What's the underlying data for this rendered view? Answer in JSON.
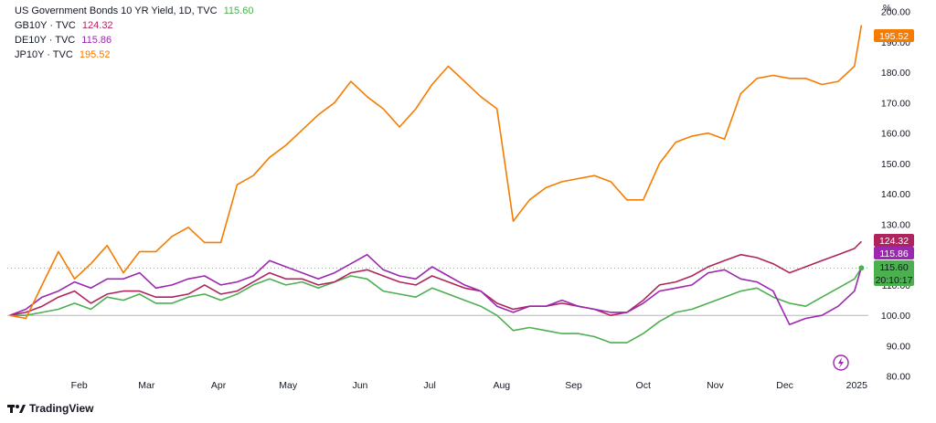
{
  "legend": {
    "main_title": "US Government Bonds 10 YR Yield, 1D, TVC",
    "main_value": "115.60",
    "main_color": "#4caf50",
    "items": [
      {
        "label": "GB10Y · TVC",
        "value": "124.32",
        "color": "#b0245e"
      },
      {
        "label": "DE10Y · TVC",
        "value": "115.86",
        "color": "#9c27b0"
      },
      {
        "label": "JP10Y · TVC",
        "value": "195.52",
        "color": "#f57c00"
      }
    ]
  },
  "axis": {
    "unit": "%",
    "countdown": "20:10:17",
    "last_badges": [
      {
        "series": "JP10Y",
        "text": "195.52",
        "color": "#f57c00"
      },
      {
        "series": "GB10Y",
        "text": "124.32",
        "color": "#b0245e"
      },
      {
        "series": "DE10Y",
        "text": "115.86",
        "color": "#9c27b0"
      },
      {
        "series": "US10Y",
        "text": "115.60",
        "color": "#4caf50"
      }
    ]
  },
  "brand": {
    "name": "TradingView"
  },
  "chart_data": {
    "type": "line",
    "x": [
      "2024-01-02",
      "2024-01-09",
      "2024-01-16",
      "2024-01-23",
      "2024-01-30",
      "2024-02-06",
      "2024-02-13",
      "2024-02-20",
      "2024-02-27",
      "2024-03-05",
      "2024-03-12",
      "2024-03-19",
      "2024-03-26",
      "2024-04-02",
      "2024-04-09",
      "2024-04-16",
      "2024-04-23",
      "2024-04-30",
      "2024-05-07",
      "2024-05-14",
      "2024-05-21",
      "2024-05-28",
      "2024-06-04",
      "2024-06-11",
      "2024-06-18",
      "2024-06-25",
      "2024-07-02",
      "2024-07-09",
      "2024-07-16",
      "2024-07-23",
      "2024-07-30",
      "2024-08-06",
      "2024-08-13",
      "2024-08-20",
      "2024-08-27",
      "2024-09-03",
      "2024-09-10",
      "2024-09-17",
      "2024-09-24",
      "2024-10-01",
      "2024-10-08",
      "2024-10-15",
      "2024-10-22",
      "2024-10-29",
      "2024-11-05",
      "2024-11-12",
      "2024-11-19",
      "2024-11-26",
      "2024-12-03",
      "2024-12-10",
      "2024-12-17",
      "2024-12-24",
      "2024-12-31",
      "2025-01-03"
    ],
    "x_ticks": [
      "Feb",
      "Mar",
      "Apr",
      "May",
      "Jun",
      "Jul",
      "Aug",
      "Sep",
      "Oct",
      "Nov",
      "Dec",
      "2025"
    ],
    "x_tick_dates": [
      "2024-02-01",
      "2024-03-01",
      "2024-04-01",
      "2024-05-01",
      "2024-06-01",
      "2024-07-01",
      "2024-08-01",
      "2024-09-01",
      "2024-10-01",
      "2024-11-01",
      "2024-12-01",
      "2025-01-01"
    ],
    "y_ticks": [
      80,
      90,
      100,
      110,
      120,
      130,
      140,
      150,
      160,
      170,
      180,
      190,
      200
    ],
    "ylim": [
      76,
      202
    ],
    "baseline": 100,
    "grid": false,
    "legend_position": "top-left",
    "series": [
      {
        "name": "US10Y",
        "color": "#4caf50",
        "values": [
          100,
          100,
          101,
          102,
          104,
          102,
          106,
          105,
          107,
          104,
          104,
          106,
          107,
          105,
          107,
          110,
          112,
          110,
          111,
          109,
          111,
          113,
          112,
          108,
          107,
          106,
          109,
          107,
          105,
          103,
          100,
          95,
          96,
          95,
          94,
          94,
          93,
          91,
          91,
          94,
          98,
          101,
          102,
          104,
          106,
          108,
          109,
          106,
          104,
          103,
          106,
          109,
          112,
          115.6
        ]
      },
      {
        "name": "GB10Y",
        "color": "#b0245e",
        "values": [
          100,
          101,
          103,
          106,
          108,
          104,
          107,
          108,
          108,
          106,
          106,
          107,
          110,
          107,
          108,
          111,
          114,
          112,
          112,
          110,
          111,
          114,
          115,
          113,
          111,
          110,
          113,
          111,
          109,
          108,
          104,
          102,
          103,
          103,
          104,
          103,
          102,
          100,
          101,
          105,
          110,
          111,
          113,
          116,
          118,
          120,
          119,
          117,
          114,
          116,
          118,
          120,
          122,
          124.32
        ]
      },
      {
        "name": "DE10Y",
        "color": "#9c27b0",
        "values": [
          100,
          102,
          106,
          108,
          111,
          109,
          112,
          112,
          114,
          109,
          110,
          112,
          113,
          110,
          111,
          113,
          118,
          116,
          114,
          112,
          114,
          117,
          120,
          115,
          113,
          112,
          116,
          113,
          110,
          108,
          103,
          101,
          103,
          103,
          105,
          103,
          102,
          101,
          101,
          104,
          108,
          109,
          110,
          114,
          115,
          112,
          111,
          108,
          97,
          99,
          100,
          103,
          108,
          115.86
        ]
      },
      {
        "name": "JP10Y",
        "color": "#f57c00",
        "values": [
          100,
          99,
          110,
          121,
          112,
          117,
          123,
          114,
          121,
          121,
          126,
          129,
          124,
          124,
          143,
          146,
          152,
          156,
          161,
          166,
          170,
          177,
          172,
          168,
          162,
          168,
          176,
          182,
          177,
          172,
          168,
          131,
          138,
          142,
          144,
          145,
          146,
          144,
          138,
          138,
          150,
          157,
          159,
          160,
          158,
          173,
          178,
          179,
          178,
          178,
          176,
          177,
          182,
          195.52
        ]
      }
    ]
  }
}
